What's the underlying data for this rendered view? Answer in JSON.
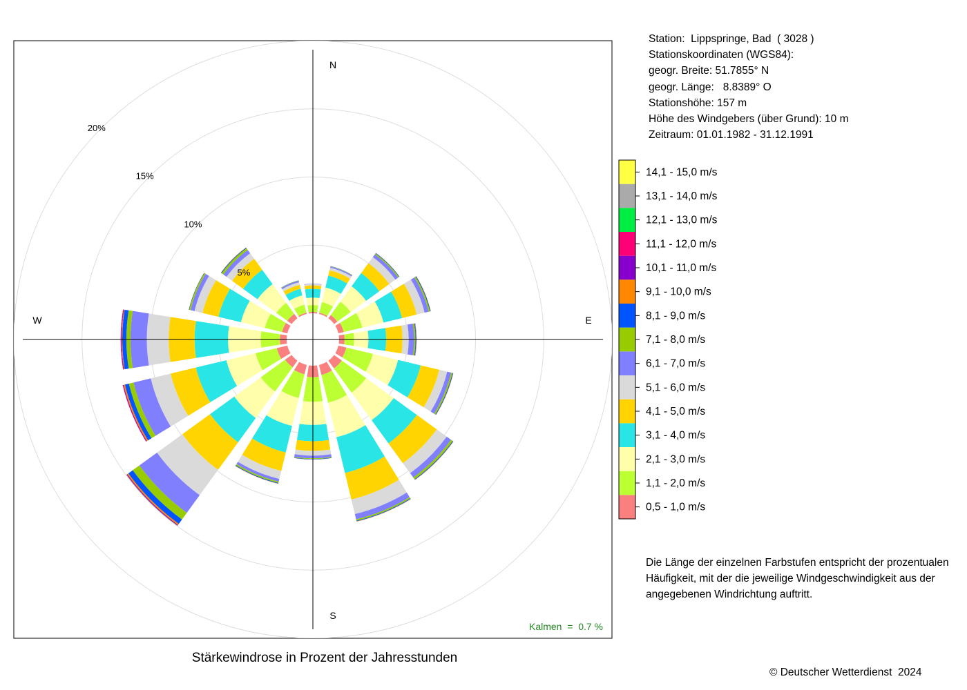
{
  "station_info": {
    "lines": [
      "Station:  Lippspringe, Bad  ( 3028 )",
      "Stationskoordinaten (WGS84):",
      "geogr. Breite: 51.7855° N",
      "geogr. Länge:   8.8389° O",
      "Stationshöhe: 157 m",
      "Höhe des Windgebers (über Grund): 10 m",
      "Zeitraum: 01.01.1982 - 31.12.1991"
    ]
  },
  "note": "Die Länge der einzelnen Farbstufen entspricht der prozentualen Häufigkeit, mit der die jeweilige Windgeschwindigkeit aus der angegebenen Windrichtung auftritt.",
  "caption": "Stärkewindrose in Prozent der Jahresstunden",
  "copyright": "© Deutscher Wetterdienst  2024",
  "calm_label": "Kalmen  =  0.7 %",
  "chart_data": {
    "type": "polar-stacked-bar",
    "title": "Stärkewindrose in Prozent der Jahresstunden",
    "directions": [
      "N",
      "NNE",
      "NE",
      "ENE",
      "E",
      "ESE",
      "SE",
      "SSE",
      "S",
      "SSW",
      "SW",
      "WSW",
      "W",
      "WNW",
      "NW",
      "NNW"
    ],
    "direction_angles": [
      0,
      22.5,
      45,
      67.5,
      90,
      112.5,
      135,
      157.5,
      180,
      202.5,
      225,
      247.5,
      270,
      292.5,
      315,
      337.5
    ],
    "compass_labels": [
      "N",
      "E",
      "S",
      "W"
    ],
    "radial_ticks": [
      5,
      10,
      15,
      20
    ],
    "radial_tick_labels": [
      "5%",
      "10%",
      "15%",
      "20%"
    ],
    "radial_max": 20,
    "calm_percent": 0.7,
    "classes": [
      {
        "label": "0,5 - 1,0 m/s",
        "color": "#FA8080"
      },
      {
        "label": "1,1 - 2,0 m/s",
        "color": "#BCFF33"
      },
      {
        "label": "2,1 - 3,0 m/s",
        "color": "#FFFFAB"
      },
      {
        "label": "3,1 - 4,0 m/s",
        "color": "#2AE5E5"
      },
      {
        "label": "4,1 - 5,0 m/s",
        "color": "#FFD400"
      },
      {
        "label": "5,1 - 6,0 m/s",
        "color": "#DADADA"
      },
      {
        "label": "6,1 - 7,0 m/s",
        "color": "#8080FF"
      },
      {
        "label": "7,1 - 8,0 m/s",
        "color": "#99CC00"
      },
      {
        "label": "8,1 - 9,0 m/s",
        "color": "#0055FF"
      },
      {
        "label": "9,1 - 10,0 m/s",
        "color": "#FF8800"
      },
      {
        "label": "10,1 - 11,0 m/s",
        "color": "#8800CC"
      },
      {
        "label": "11,1 - 12,0 m/s",
        "color": "#FF0077"
      },
      {
        "label": "12,1 - 13,0 m/s",
        "color": "#00EE44"
      },
      {
        "label": "13,1 - 14,0 m/s",
        "color": "#AAAAAA"
      },
      {
        "label": "14,1 - 15,0 m/s",
        "color": "#FFFF44"
      }
    ],
    "series": [
      {
        "direction": "N",
        "values": [
          0.1,
          0.5,
          0.55,
          0.65,
          0.25,
          0.1,
          0.03,
          0,
          0,
          0,
          0,
          0,
          0,
          0,
          0
        ]
      },
      {
        "direction": "NNE",
        "values": [
          0.1,
          0.8,
          1.1,
          0.9,
          0.4,
          0.2,
          0.08,
          0.03,
          0.01,
          0,
          0,
          0,
          0,
          0,
          0
        ]
      },
      {
        "direction": "NE",
        "values": [
          0.3,
          1.2,
          1.4,
          1.2,
          0.9,
          0.55,
          0.25,
          0.08,
          0.04,
          0.01,
          0,
          0,
          0,
          0,
          0
        ]
      },
      {
        "direction": "ENE",
        "values": [
          0.4,
          1.4,
          1.6,
          1.4,
          1.1,
          0.6,
          0.3,
          0.1,
          0.05,
          0.02,
          0,
          0,
          0,
          0,
          0
        ]
      },
      {
        "direction": "E",
        "values": [
          0.4,
          0.7,
          1.05,
          1.3,
          1.2,
          0.45,
          0.4,
          0.1,
          0.05,
          0.02,
          0.01,
          0,
          0,
          0,
          0
        ]
      },
      {
        "direction": "ESE",
        "values": [
          0.6,
          2.0,
          1.9,
          1.7,
          1.4,
          0.6,
          0.3,
          0.1,
          0.05,
          0.02,
          0,
          0,
          0,
          0,
          0
        ]
      },
      {
        "direction": "SE",
        "values": [
          0.7,
          2.2,
          2.5,
          2.1,
          1.8,
          0.9,
          0.4,
          0.15,
          0.05,
          0.02,
          0,
          0,
          0,
          0,
          0
        ]
      },
      {
        "direction": "SSE",
        "values": [
          0.75,
          2.1,
          2.6,
          2.7,
          2.0,
          1.1,
          0.4,
          0.1,
          0.05,
          0.02,
          0,
          0,
          0,
          0,
          0
        ]
      },
      {
        "direction": "S",
        "values": [
          0.85,
          1.8,
          1.7,
          1.2,
          0.7,
          0.35,
          0.2,
          0.05,
          0.03,
          0.01,
          0,
          0,
          0,
          0,
          0
        ]
      },
      {
        "direction": "SSW",
        "values": [
          0.7,
          1.8,
          2.1,
          2.0,
          1.4,
          0.6,
          0.2,
          0.1,
          0.05,
          0.02,
          0,
          0,
          0,
          0,
          0
        ]
      },
      {
        "direction": "SW",
        "values": [
          0.6,
          2.2,
          2.4,
          2.2,
          2.5,
          2.3,
          1.6,
          0.6,
          0.4,
          0.1,
          0.05,
          0.02,
          0.01,
          0,
          0
        ]
      },
      {
        "direction": "WSW",
        "values": [
          0.8,
          1.6,
          2.2,
          2.3,
          1.9,
          1.5,
          1.3,
          0.35,
          0.3,
          0.1,
          0.05,
          0.02,
          0,
          0,
          0
        ]
      },
      {
        "direction": "W",
        "values": [
          0.5,
          1.4,
          2.4,
          2.45,
          1.9,
          1.6,
          1.2,
          0.3,
          0.3,
          0.05,
          0.05,
          0.02,
          0,
          0,
          0
        ]
      },
      {
        "direction": "WNW",
        "values": [
          0.4,
          1.3,
          1.8,
          1.7,
          1.2,
          0.6,
          0.3,
          0.1,
          0.03,
          0.01,
          0,
          0,
          0,
          0,
          0
        ]
      },
      {
        "direction": "NW",
        "values": [
          0.4,
          1.0,
          1.7,
          1.3,
          1.0,
          0.5,
          0.3,
          0.15,
          0.05,
          0.02,
          0,
          0,
          0,
          0,
          0
        ]
      },
      {
        "direction": "NNW",
        "values": [
          0.1,
          0.6,
          0.7,
          0.5,
          0.3,
          0.2,
          0.1,
          0.03,
          0.01,
          0,
          0,
          0,
          0,
          0,
          0
        ]
      }
    ]
  }
}
